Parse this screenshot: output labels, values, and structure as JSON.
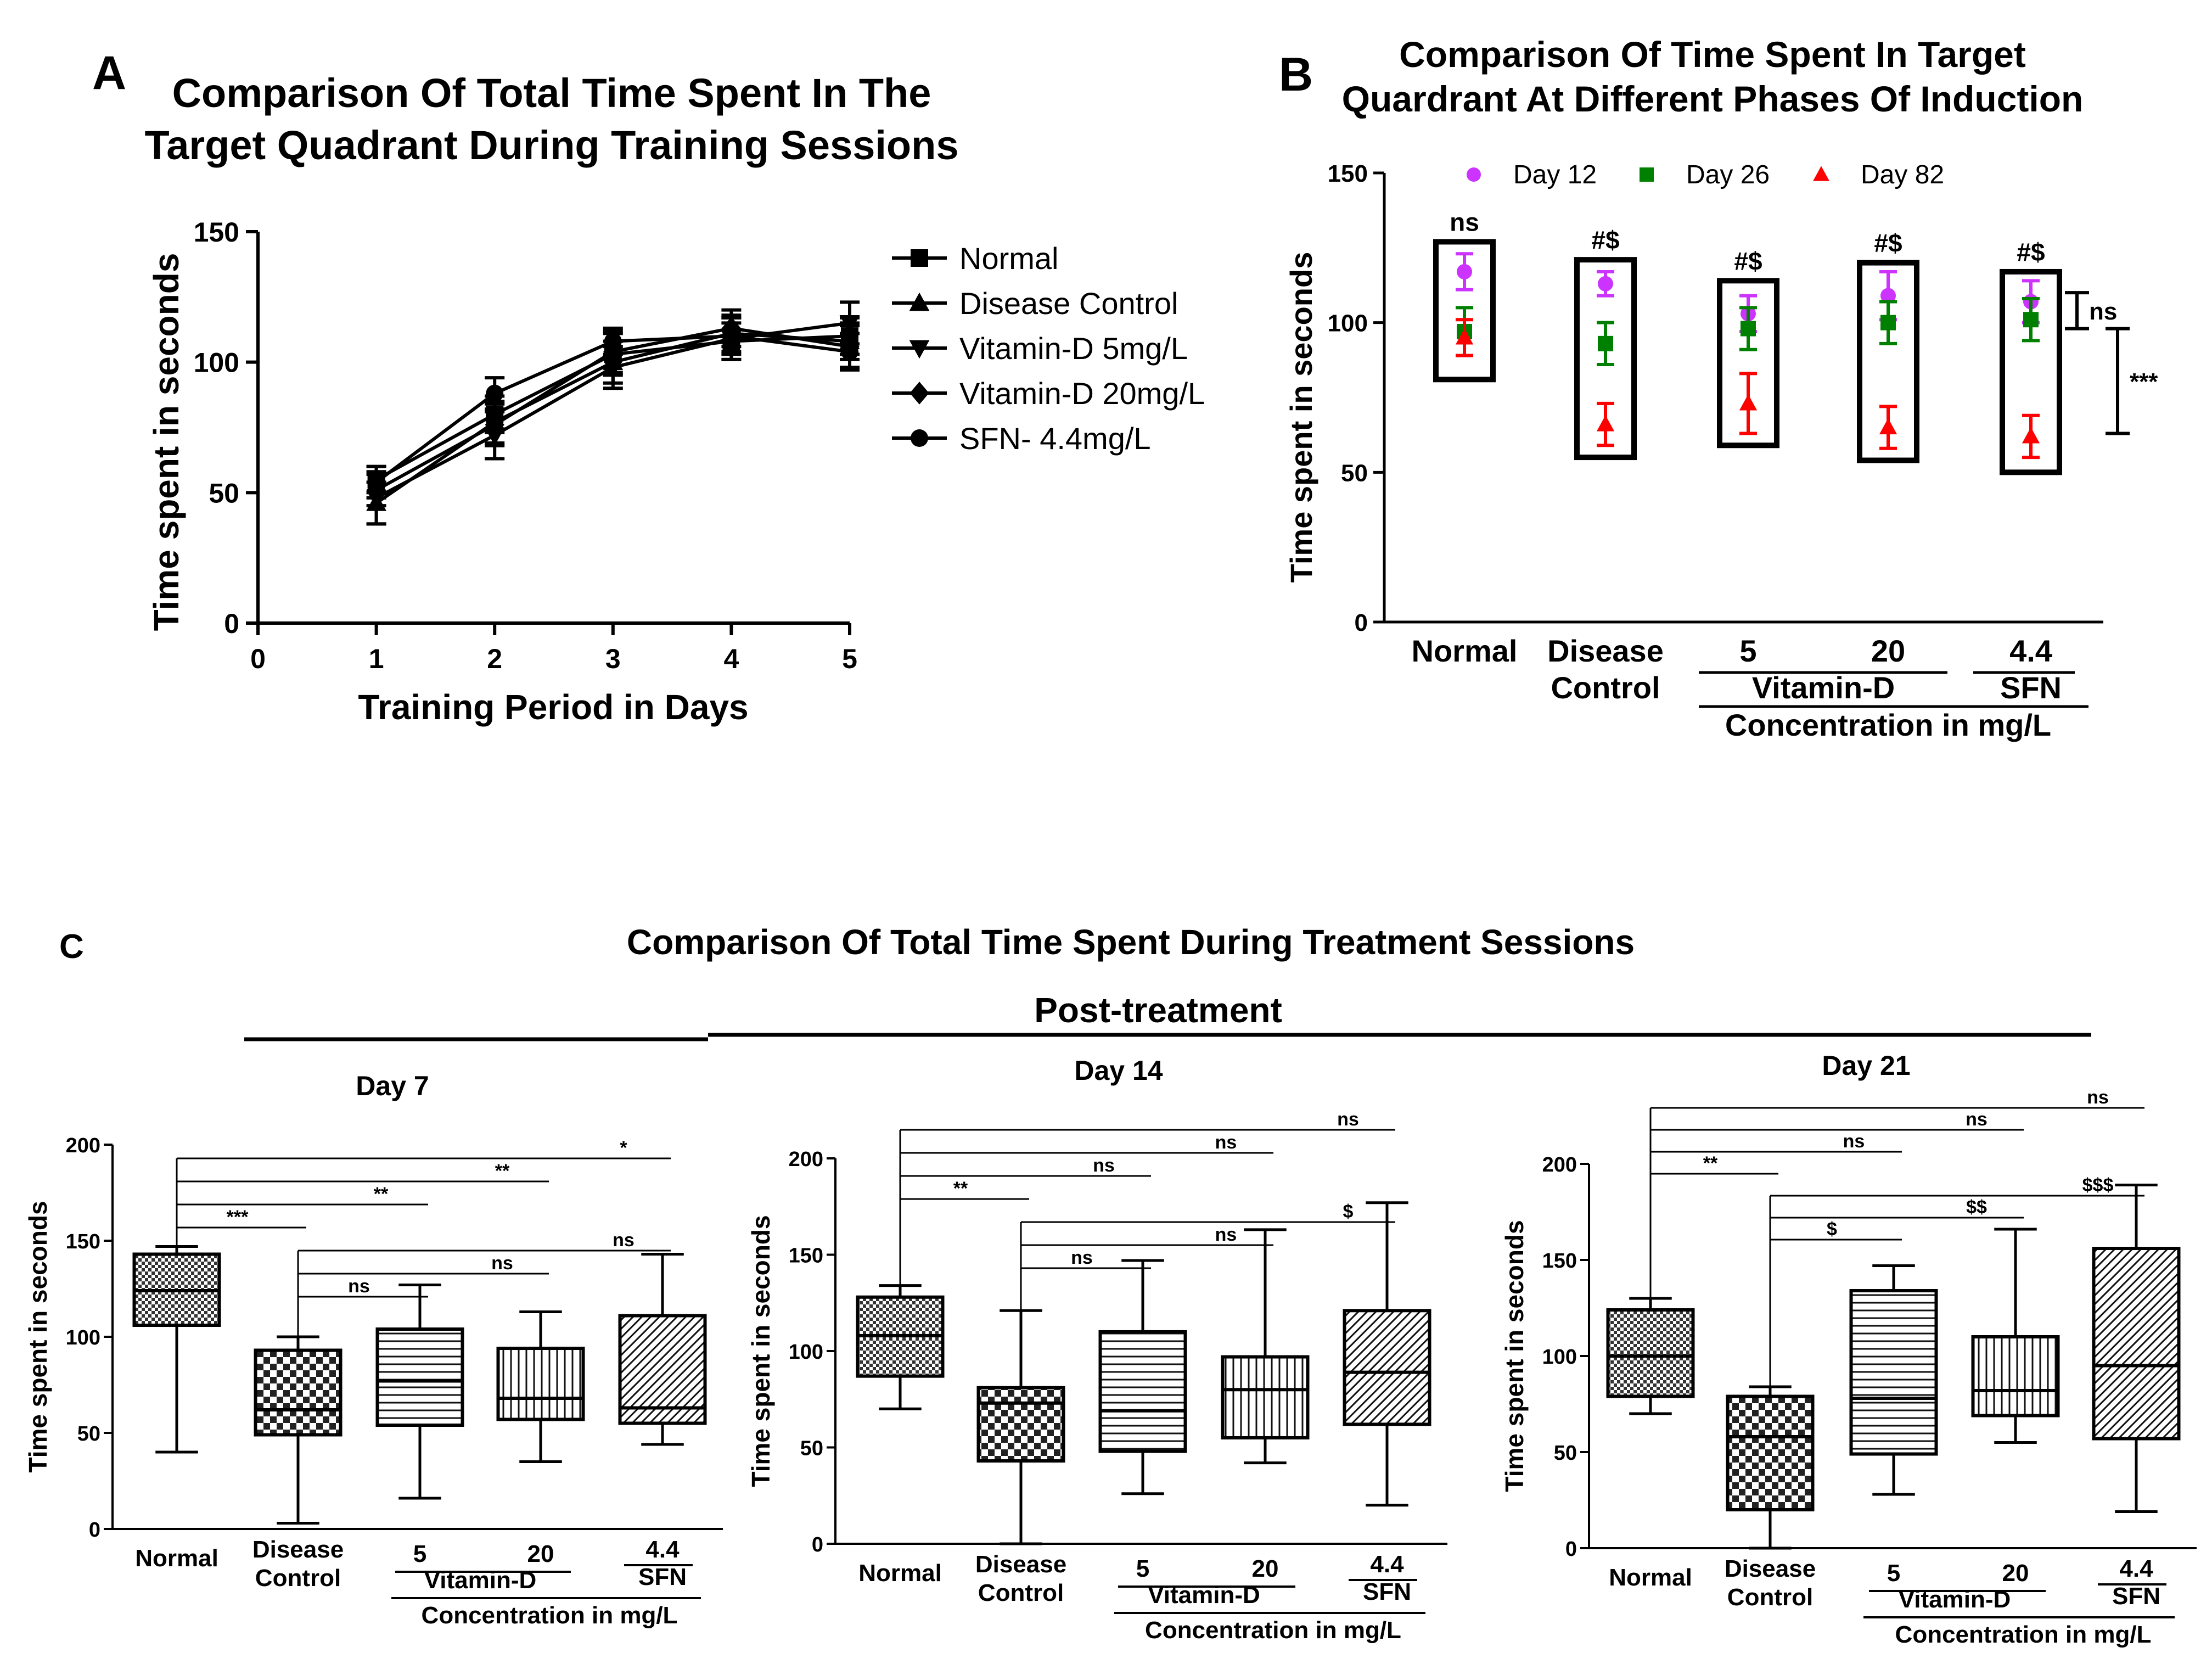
{
  "chart_data": [
    {
      "id": "A",
      "type": "line",
      "panel_label": "A",
      "title_lines": [
        "Comparison Of Total Time Spent In The",
        "Target Quadrant During Training Sessions"
      ],
      "xlabel": "Training Period in Days",
      "ylabel": "Time spent in seconds",
      "xlim": [
        0,
        5
      ],
      "ylim": [
        0,
        150
      ],
      "xticks": [
        0,
        1,
        2,
        3,
        4,
        5
      ],
      "yticks": [
        0,
        50,
        100,
        150
      ],
      "x": [
        1,
        2,
        3,
        4,
        5
      ],
      "series": [
        {
          "name": "Normal",
          "marker": "square",
          "values": [
            55,
            80,
            103,
            108,
            110
          ],
          "err": [
            5,
            7,
            8,
            7,
            7
          ]
        },
        {
          "name": "Disease Control",
          "marker": "triangle-up",
          "values": [
            46,
            77,
            100,
            111,
            108
          ],
          "err": [
            8,
            8,
            8,
            7,
            7
          ]
        },
        {
          "name": "Vitamin-D 5mg/L",
          "marker": "triangle-down",
          "values": [
            48,
            72,
            98,
            109,
            115
          ],
          "err": [
            10,
            9,
            8,
            8,
            8
          ]
        },
        {
          "name": "Vitamin-D 20mg/L",
          "marker": "diamond",
          "values": [
            51,
            76,
            104,
            113,
            106
          ],
          "err": [
            6,
            8,
            8,
            7,
            8
          ]
        },
        {
          "name": "SFN- 4.4mg/L",
          "marker": "circle",
          "values": [
            54,
            88,
            108,
            110,
            104
          ],
          "err": [
            6,
            6,
            5,
            7,
            7
          ]
        }
      ]
    },
    {
      "id": "B",
      "type": "scatter",
      "panel_label": "B",
      "title_lines": [
        "Comparison Of Time Spent In Target",
        "Quardrant At Different Phases Of Induction"
      ],
      "ylabel": "Time spent in seconds",
      "ylim": [
        0,
        150
      ],
      "yticks": [
        0,
        50,
        100,
        150
      ],
      "groups": [
        {
          "label": "Normal",
          "annotation": "ns",
          "box": [
            81,
            127
          ]
        },
        {
          "label": "Disease Control",
          "annotation": "#$",
          "box": [
            55,
            121
          ]
        },
        {
          "label": "5",
          "annotation": "#$",
          "box": [
            59,
            114
          ]
        },
        {
          "label": "20",
          "annotation": "#$",
          "box": [
            54,
            120
          ]
        },
        {
          "label": "4.4",
          "annotation": "#$",
          "box": [
            50,
            117
          ]
        }
      ],
      "x_labels_line2": [
        "",
        "Control",
        "Vitamin-D",
        "SFN"
      ],
      "xlabel": "Concentration in mg/L",
      "series": [
        {
          "name": "Day 12",
          "color": "#cc33ff",
          "marker": "circle",
          "values": [
            117,
            113,
            103,
            109,
            107
          ],
          "err": [
            6,
            4,
            6,
            8,
            7
          ]
        },
        {
          "name": "Day 26",
          "color": "#008000",
          "marker": "square",
          "values": [
            97,
            93,
            98,
            100,
            101
          ],
          "err": [
            8,
            7,
            7,
            7,
            7
          ]
        },
        {
          "name": "Day 82",
          "color": "#ff0000",
          "marker": "triangle-up",
          "values": [
            95,
            66,
            73,
            65,
            62
          ],
          "err": [
            6,
            7,
            10,
            7,
            7
          ]
        }
      ],
      "right_brackets": [
        {
          "label": "ns",
          "range": [
            98,
            110
          ]
        },
        {
          "label": "***",
          "range": [
            63,
            98
          ]
        }
      ]
    }
  ],
  "panel_c": {
    "panel_label": "C",
    "title": "Comparison Of Total Time Spent During Treatment Sessions",
    "subtitle": "Post-treatment",
    "ylabel": "Time spent in seconds",
    "group_labels": [
      "Normal",
      "Disease",
      "Control",
      "5",
      "20",
      "4.4",
      "Vitamin-D",
      "SFN",
      "Concentration in mg/L"
    ],
    "days": [
      {
        "title": "Day 7",
        "type": "box",
        "ylim": [
          0,
          200
        ],
        "yticks": [
          0,
          50,
          100,
          150,
          200
        ],
        "boxes": [
          {
            "min": 40,
            "q1": 106,
            "median": 124,
            "q3": 143,
            "max": 147
          },
          {
            "min": 3,
            "q1": 49,
            "median": 62,
            "q3": 93,
            "max": 100
          },
          {
            "min": 16,
            "q1": 54,
            "median": 77,
            "q3": 104,
            "max": 127
          },
          {
            "min": 35,
            "q1": 57,
            "median": 68,
            "q3": 94,
            "max": 113
          },
          {
            "min": 44,
            "q1": 55,
            "median": 63,
            "q3": 111,
            "max": 143
          }
        ],
        "brackets": [
          {
            "from": 0,
            "to": 4,
            "label": "*"
          },
          {
            "from": 0,
            "to": 3,
            "label": "**"
          },
          {
            "from": 0,
            "to": 2,
            "label": "**"
          },
          {
            "from": 0,
            "to": 1,
            "label": "***"
          },
          {
            "from": 1,
            "to": 4,
            "label": "ns"
          },
          {
            "from": 1,
            "to": 3,
            "label": "ns"
          },
          {
            "from": 1,
            "to": 2,
            "label": "ns"
          }
        ]
      },
      {
        "title": "Day 14",
        "type": "box",
        "ylim": [
          0,
          200
        ],
        "yticks": [
          0,
          50,
          100,
          150,
          200
        ],
        "boxes": [
          {
            "min": 70,
            "q1": 87,
            "median": 108,
            "q3": 128,
            "max": 134
          },
          {
            "min": 0,
            "q1": 43,
            "median": 73,
            "q3": 81,
            "max": 121
          },
          {
            "min": 26,
            "q1": 48,
            "median": 69,
            "q3": 110,
            "max": 147
          },
          {
            "min": 42,
            "q1": 55,
            "median": 80,
            "q3": 97,
            "max": 163
          },
          {
            "min": 20,
            "q1": 62,
            "median": 89,
            "q3": 121,
            "max": 177
          }
        ],
        "brackets": [
          {
            "from": 0,
            "to": 4,
            "label": "ns"
          },
          {
            "from": 0,
            "to": 3,
            "label": "ns"
          },
          {
            "from": 0,
            "to": 2,
            "label": "ns"
          },
          {
            "from": 0,
            "to": 1,
            "label": "**"
          },
          {
            "from": 1,
            "to": 4,
            "label": "$"
          },
          {
            "from": 1,
            "to": 3,
            "label": "ns"
          },
          {
            "from": 1,
            "to": 2,
            "label": "ns"
          }
        ]
      },
      {
        "title": "Day 21",
        "type": "box",
        "ylim": [
          0,
          200
        ],
        "yticks": [
          0,
          50,
          100,
          150,
          200
        ],
        "boxes": [
          {
            "min": 70,
            "q1": 79,
            "median": 100,
            "q3": 124,
            "max": 130
          },
          {
            "min": 0,
            "q1": 20,
            "median": 58,
            "q3": 79,
            "max": 84
          },
          {
            "min": 28,
            "q1": 49,
            "median": 78,
            "q3": 134,
            "max": 147
          },
          {
            "min": 55,
            "q1": 69,
            "median": 82,
            "q3": 110,
            "max": 166
          },
          {
            "min": 19,
            "q1": 57,
            "median": 95,
            "q3": 156,
            "max": 189
          }
        ],
        "brackets": [
          {
            "from": 0,
            "to": 4,
            "label": "ns"
          },
          {
            "from": 0,
            "to": 3,
            "label": "ns"
          },
          {
            "from": 0,
            "to": 2,
            "label": "ns"
          },
          {
            "from": 0,
            "to": 1,
            "label": "**"
          },
          {
            "from": 1,
            "to": 4,
            "label": "$$$"
          },
          {
            "from": 1,
            "to": 3,
            "label": "$$"
          },
          {
            "from": 1,
            "to": 2,
            "label": "$"
          }
        ]
      }
    ]
  }
}
